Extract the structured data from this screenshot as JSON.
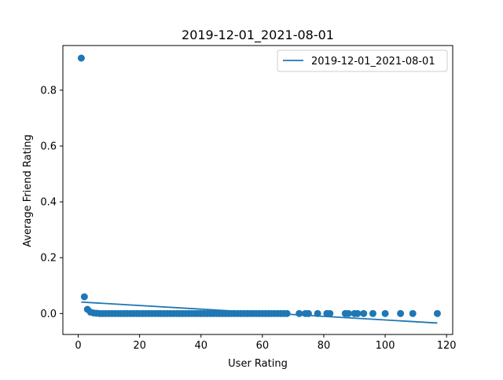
{
  "chart_data": {
    "type": "scatter",
    "title": "2019-12-01_2021-08-01",
    "xlabel": "User Rating",
    "ylabel": "Average Friend Rating",
    "xlim": [
      -5,
      122
    ],
    "ylim": [
      -0.075,
      0.96
    ],
    "x_ticks": [
      0,
      20,
      40,
      60,
      80,
      100,
      120
    ],
    "y_ticks": [
      0.0,
      0.2,
      0.4,
      0.6,
      0.8
    ],
    "x_tick_labels": [
      "0",
      "20",
      "40",
      "60",
      "80",
      "100",
      "120"
    ],
    "y_tick_labels": [
      "0.0",
      "0.2",
      "0.4",
      "0.6",
      "0.8"
    ],
    "grid": false,
    "legend_position": "top-right",
    "colors": {
      "series": "#1f77b4",
      "axes": "#000000",
      "background": "#ffffff"
    },
    "series": [
      {
        "kind": "scatter",
        "points": [
          [
            1,
            0.915
          ],
          [
            2,
            0.06
          ],
          [
            3,
            0.015
          ],
          [
            4,
            0.005
          ],
          [
            5,
            0.002
          ],
          [
            6,
            0.001
          ],
          [
            7,
            0.0
          ],
          [
            8,
            0.0
          ],
          [
            9,
            0.0
          ],
          [
            10,
            0.0
          ],
          [
            11,
            0.0
          ],
          [
            12,
            0.0
          ],
          [
            13,
            0.0
          ],
          [
            14,
            0.0
          ],
          [
            15,
            0.0
          ],
          [
            16,
            0.0
          ],
          [
            17,
            0.0
          ],
          [
            18,
            0.0
          ],
          [
            19,
            0.0
          ],
          [
            20,
            0.0
          ],
          [
            21,
            0.0
          ],
          [
            22,
            0.0
          ],
          [
            23,
            0.0
          ],
          [
            24,
            0.0
          ],
          [
            25,
            0.0
          ],
          [
            26,
            0.0
          ],
          [
            27,
            0.0
          ],
          [
            28,
            0.0
          ],
          [
            29,
            0.0
          ],
          [
            30,
            0.0
          ],
          [
            31,
            0.0
          ],
          [
            32,
            0.0
          ],
          [
            33,
            0.0
          ],
          [
            34,
            0.0
          ],
          [
            35,
            0.0
          ],
          [
            36,
            0.0
          ],
          [
            37,
            0.0
          ],
          [
            38,
            0.0
          ],
          [
            39,
            0.0
          ],
          [
            40,
            0.0
          ],
          [
            41,
            0.0
          ],
          [
            42,
            0.0
          ],
          [
            43,
            0.0
          ],
          [
            44,
            0.0
          ],
          [
            45,
            0.0
          ],
          [
            46,
            0.0
          ],
          [
            47,
            0.0
          ],
          [
            48,
            0.0
          ],
          [
            49,
            0.0
          ],
          [
            50,
            0.0
          ],
          [
            51,
            0.0
          ],
          [
            52,
            0.0
          ],
          [
            53,
            0.0
          ],
          [
            54,
            0.0
          ],
          [
            55,
            0.0
          ],
          [
            56,
            0.0
          ],
          [
            57,
            0.0
          ],
          [
            58,
            0.0
          ],
          [
            59,
            0.0
          ],
          [
            60,
            0.0
          ],
          [
            61,
            0.0
          ],
          [
            62,
            0.0
          ],
          [
            63,
            0.0
          ],
          [
            64,
            0.0
          ],
          [
            65,
            0.0
          ],
          [
            66,
            0.0
          ],
          [
            67,
            0.0
          ],
          [
            68,
            0.0
          ],
          [
            72,
            0.0
          ],
          [
            74,
            0.0
          ],
          [
            75,
            0.0
          ],
          [
            78,
            0.0
          ],
          [
            81,
            0.0
          ],
          [
            82,
            0.0
          ],
          [
            87,
            0.0
          ],
          [
            88,
            0.0
          ],
          [
            90,
            0.0
          ],
          [
            91,
            0.0
          ],
          [
            93,
            0.0
          ],
          [
            96,
            0.0
          ],
          [
            100,
            0.0
          ],
          [
            105,
            0.0
          ],
          [
            109,
            0.0
          ],
          [
            117,
            0.0
          ]
        ]
      },
      {
        "name": "2019-12-01_2021-08-01",
        "kind": "line",
        "x": [
          1,
          117
        ],
        "y": [
          0.041,
          -0.034
        ]
      }
    ]
  }
}
